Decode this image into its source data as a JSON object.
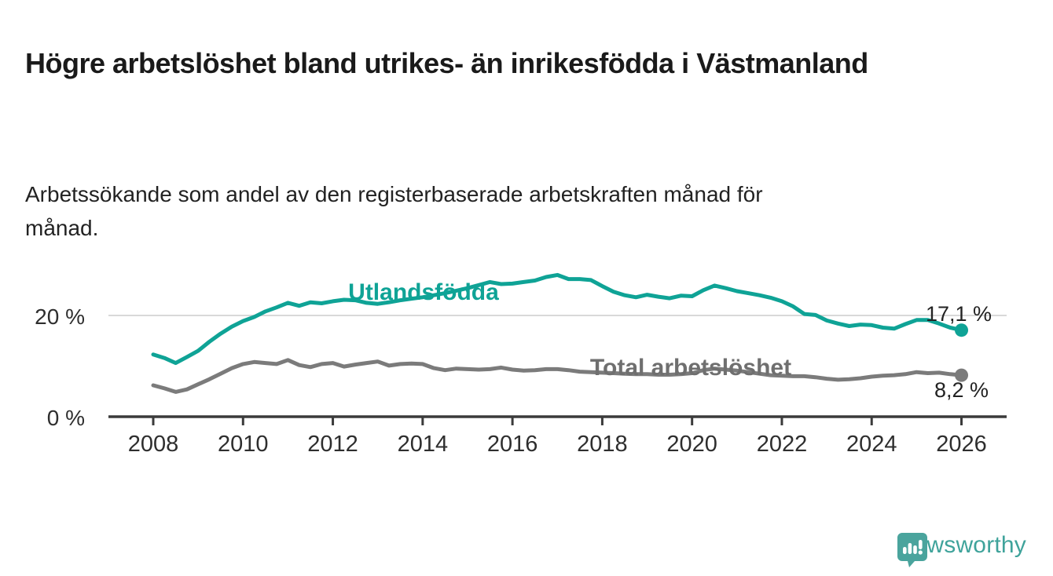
{
  "header": {
    "title": "Högre arbetslöshet bland utrikes- än inrikesfödda i Västmanland",
    "subtitle": "Arbetssökande som andel av den registerbaserade arbetskraften månad för månad."
  },
  "chart_data": {
    "type": "line",
    "title": "Högre arbetslöshet bland utrikes- än inrikesfödda i Västmanland",
    "subtitle": "Arbetssökande som andel av den registerbaserade arbetskraften månad för månad.",
    "xlabel": "",
    "ylabel": "",
    "x_unit": "year (monthly series, quarterly sampled)",
    "xlim": [
      2007.3,
      2027.0
    ],
    "ylim": [
      0,
      30
    ],
    "grid": "single horizontal gridline at 20 %",
    "legend_position": "inline labels next to lines",
    "y_axis_labels": [
      "0 %",
      "20 %"
    ],
    "y_gridline_value": 20,
    "x_tick_years": [
      2008,
      2010,
      2012,
      2014,
      2016,
      2018,
      2020,
      2022,
      2024,
      2026
    ],
    "x_tick_labels": [
      "2008",
      "2010",
      "2012",
      "2014",
      "2016",
      "2018",
      "2020",
      "2022",
      "2024",
      "2026"
    ],
    "x": [
      2008.0,
      2008.25,
      2008.5,
      2008.75,
      2009.0,
      2009.25,
      2009.5,
      2009.75,
      2010.0,
      2010.25,
      2010.5,
      2010.75,
      2011.0,
      2011.25,
      2011.5,
      2011.75,
      2012.0,
      2012.25,
      2012.5,
      2012.75,
      2013.0,
      2013.25,
      2013.5,
      2013.75,
      2014.0,
      2014.25,
      2014.5,
      2014.75,
      2015.0,
      2015.25,
      2015.5,
      2015.75,
      2016.0,
      2016.25,
      2016.5,
      2016.75,
      2017.0,
      2017.25,
      2017.5,
      2017.75,
      2018.0,
      2018.25,
      2018.5,
      2018.75,
      2019.0,
      2019.25,
      2019.5,
      2019.75,
      2020.0,
      2020.25,
      2020.5,
      2020.75,
      2021.0,
      2021.25,
      2021.5,
      2021.75,
      2022.0,
      2022.25,
      2022.5,
      2022.75,
      2023.0,
      2023.25,
      2023.5,
      2023.75,
      2024.0,
      2024.25,
      2024.5,
      2024.75,
      2025.0,
      2025.25,
      2025.5,
      2025.75,
      2026.0
    ],
    "series": [
      {
        "name": "Utlandsfödda",
        "color": "#0fa396",
        "end_label": "17,1 %",
        "end_value": 17.1,
        "values": [
          12.3,
          11.6,
          10.6,
          11.8,
          13.0,
          14.8,
          16.4,
          17.8,
          18.9,
          19.7,
          20.8,
          21.6,
          22.5,
          21.9,
          22.6,
          22.4,
          22.8,
          23.1,
          23.0,
          22.5,
          22.3,
          22.6,
          23.0,
          23.3,
          23.6,
          24.0,
          24.4,
          24.9,
          25.4,
          26.0,
          26.6,
          26.2,
          26.3,
          26.6,
          26.9,
          27.6,
          28.0,
          27.2,
          27.2,
          27.0,
          25.8,
          24.7,
          24.0,
          23.6,
          24.1,
          23.7,
          23.4,
          23.9,
          23.8,
          25.0,
          25.9,
          25.4,
          24.8,
          24.4,
          24.0,
          23.5,
          22.8,
          21.8,
          20.3,
          20.1,
          19.0,
          18.4,
          17.9,
          18.2,
          18.1,
          17.6,
          17.4,
          18.3,
          19.1,
          19.1,
          18.4,
          17.6,
          17.1
        ]
      },
      {
        "name": "Total arbetslöshet",
        "color": "#7b7b7b",
        "end_label": "8,2 %",
        "end_value": 8.2,
        "values": [
          6.2,
          5.6,
          4.9,
          5.4,
          6.4,
          7.4,
          8.5,
          9.6,
          10.4,
          10.8,
          10.6,
          10.4,
          11.2,
          10.2,
          9.8,
          10.4,
          10.6,
          9.9,
          10.3,
          10.6,
          10.9,
          10.1,
          10.4,
          10.5,
          10.4,
          9.6,
          9.2,
          9.5,
          9.4,
          9.3,
          9.4,
          9.7,
          9.3,
          9.1,
          9.2,
          9.4,
          9.4,
          9.2,
          8.9,
          8.8,
          8.7,
          8.6,
          8.5,
          8.4,
          8.4,
          8.3,
          8.3,
          8.4,
          8.6,
          9.2,
          9.5,
          9.3,
          9.1,
          8.8,
          8.5,
          8.2,
          8.1,
          8.0,
          8.0,
          7.8,
          7.5,
          7.3,
          7.4,
          7.6,
          7.9,
          8.1,
          8.2,
          8.4,
          8.8,
          8.6,
          8.7,
          8.4,
          8.2
        ]
      }
    ]
  },
  "colors": {
    "accent_teal": "#0fa396",
    "line_gray": "#7b7b7b",
    "label_gray": "#6f6f6f",
    "axis": "#3b3b3b",
    "gridline": "#d9d9d9",
    "text": "#1a1a1a",
    "brand_teal": "#3fa39b",
    "logo_teal": "#4aa49d"
  },
  "footer": {
    "brand": "Newsworthy",
    "logo_icon": "speech-bubble-with-bar-chart-and-exclamation"
  }
}
